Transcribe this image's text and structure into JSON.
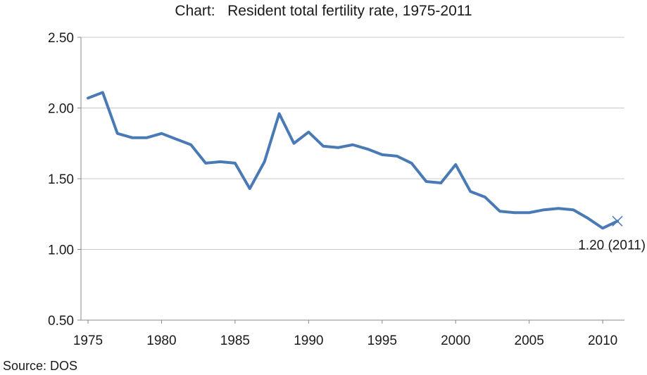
{
  "chart_data": {
    "type": "line",
    "title": "Chart:   Resident total fertility rate, 1975-2011",
    "xlabel": "",
    "ylabel": "",
    "x": [
      1975,
      1976,
      1977,
      1978,
      1979,
      1980,
      1981,
      1982,
      1983,
      1984,
      1985,
      1986,
      1987,
      1988,
      1989,
      1990,
      1991,
      1992,
      1993,
      1994,
      1995,
      1996,
      1997,
      1998,
      1999,
      2000,
      2001,
      2002,
      2003,
      2004,
      2005,
      2006,
      2007,
      2008,
      2009,
      2010,
      2011
    ],
    "series": [
      {
        "values": [
          2.07,
          2.11,
          1.82,
          1.79,
          1.79,
          1.82,
          1.78,
          1.74,
          1.61,
          1.62,
          1.61,
          1.43,
          1.62,
          1.96,
          1.75,
          1.83,
          1.73,
          1.72,
          1.74,
          1.71,
          1.67,
          1.66,
          1.61,
          1.48,
          1.47,
          1.6,
          1.41,
          1.37,
          1.27,
          1.26,
          1.26,
          1.28,
          1.29,
          1.28,
          1.22,
          1.15,
          1.2
        ],
        "color": "#4a7ab5"
      }
    ],
    "xticks": [
      "1975",
      "1980",
      "1985",
      "1990",
      "1995",
      "2000",
      "2005",
      "2010"
    ],
    "yticks": [
      "0.50",
      "1.00",
      "1.50",
      "2.00",
      "2.50"
    ],
    "xlim": [
      1975,
      2011
    ],
    "ylim": [
      0.5,
      2.5
    ],
    "grid": true,
    "annotation": {
      "text": "1.20 (2011)",
      "x": 2011,
      "y": 1.2,
      "marker": "x"
    }
  },
  "source": "Source: DOS"
}
